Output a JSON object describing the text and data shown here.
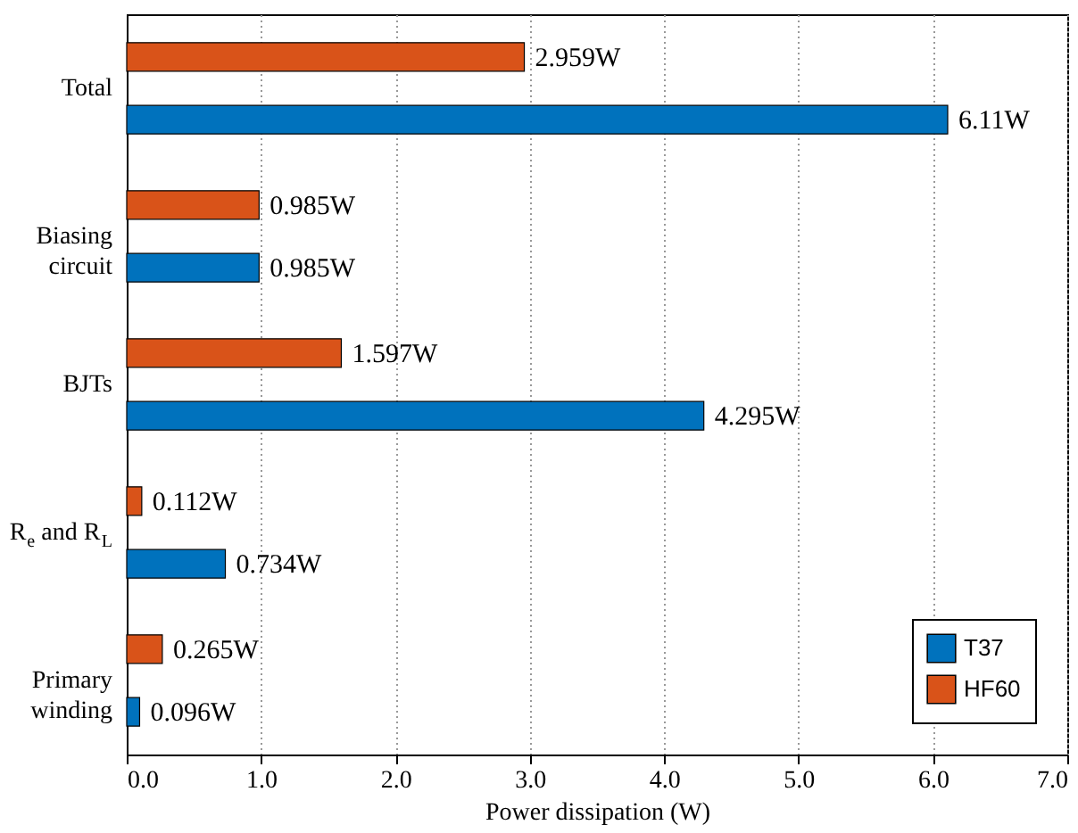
{
  "chart_data": {
    "type": "bar",
    "orientation": "horizontal",
    "xlabel": "Power dissipation (W)",
    "categories": [
      "Total",
      "Biasing\ncircuit",
      "BJTs",
      "R$_{e}$ and R$_{L}$",
      "Primary\nwinding"
    ],
    "series": [
      {
        "name": "T37",
        "color": "#0072bd",
        "values": [
          6.11,
          0.985,
          4.295,
          0.734,
          0.096
        ],
        "value_labels": [
          "6.11W",
          "0.985W",
          "4.295W",
          "0.734W",
          "0.096W"
        ]
      },
      {
        "name": "HF60",
        "color": "#d95319",
        "values": [
          2.959,
          0.985,
          1.597,
          0.112,
          0.265
        ],
        "value_labels": [
          "2.959W",
          "0.985W",
          "1.597W",
          "0.112W",
          "0.265W"
        ]
      }
    ],
    "xlim": [
      0,
      7
    ],
    "xticks": [
      {
        "value": 0,
        "label": "0.0"
      },
      {
        "value": 1,
        "label": "1.0"
      },
      {
        "value": 2,
        "label": "2.0"
      },
      {
        "value": 3,
        "label": "3.0"
      },
      {
        "value": 4,
        "label": "4.0"
      },
      {
        "value": 5,
        "label": "5.0"
      },
      {
        "value": 6,
        "label": "6.0"
      },
      {
        "value": 7,
        "label": "7.0"
      }
    ],
    "grid": true,
    "legend": "bottom right"
  }
}
